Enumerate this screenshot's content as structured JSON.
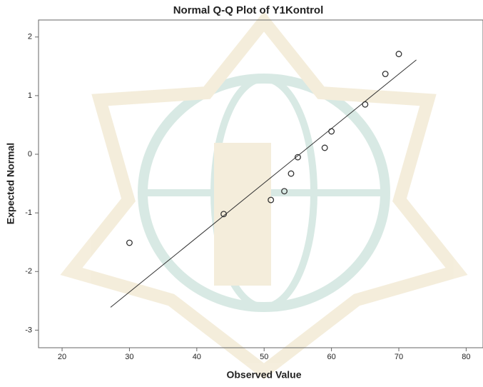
{
  "chart_data": {
    "type": "scatter",
    "title": "Normal Q-Q Plot of Y1Kontrol",
    "x_label": "Observed Value",
    "y_label": "Expected Normal",
    "x": [
      30,
      44,
      51,
      53,
      54,
      55,
      59,
      60,
      65,
      68,
      70
    ],
    "values": [
      -1.51,
      -1.02,
      -0.78,
      -0.63,
      -0.33,
      -0.05,
      0.11,
      0.39,
      0.85,
      1.37,
      1.71
    ],
    "color": "#333333",
    "reference_line": {
      "x": [
        27.2,
        72.6
      ],
      "y": [
        -2.61,
        1.61
      ]
    },
    "xlim": [
      16.5,
      82.5
    ],
    "ylim": [
      -3.3,
      2.29
    ],
    "xticks": [
      20,
      30,
      40,
      50,
      60,
      70,
      80
    ],
    "yticks": [
      -3,
      -2,
      -1,
      0,
      1,
      2
    ]
  }
}
